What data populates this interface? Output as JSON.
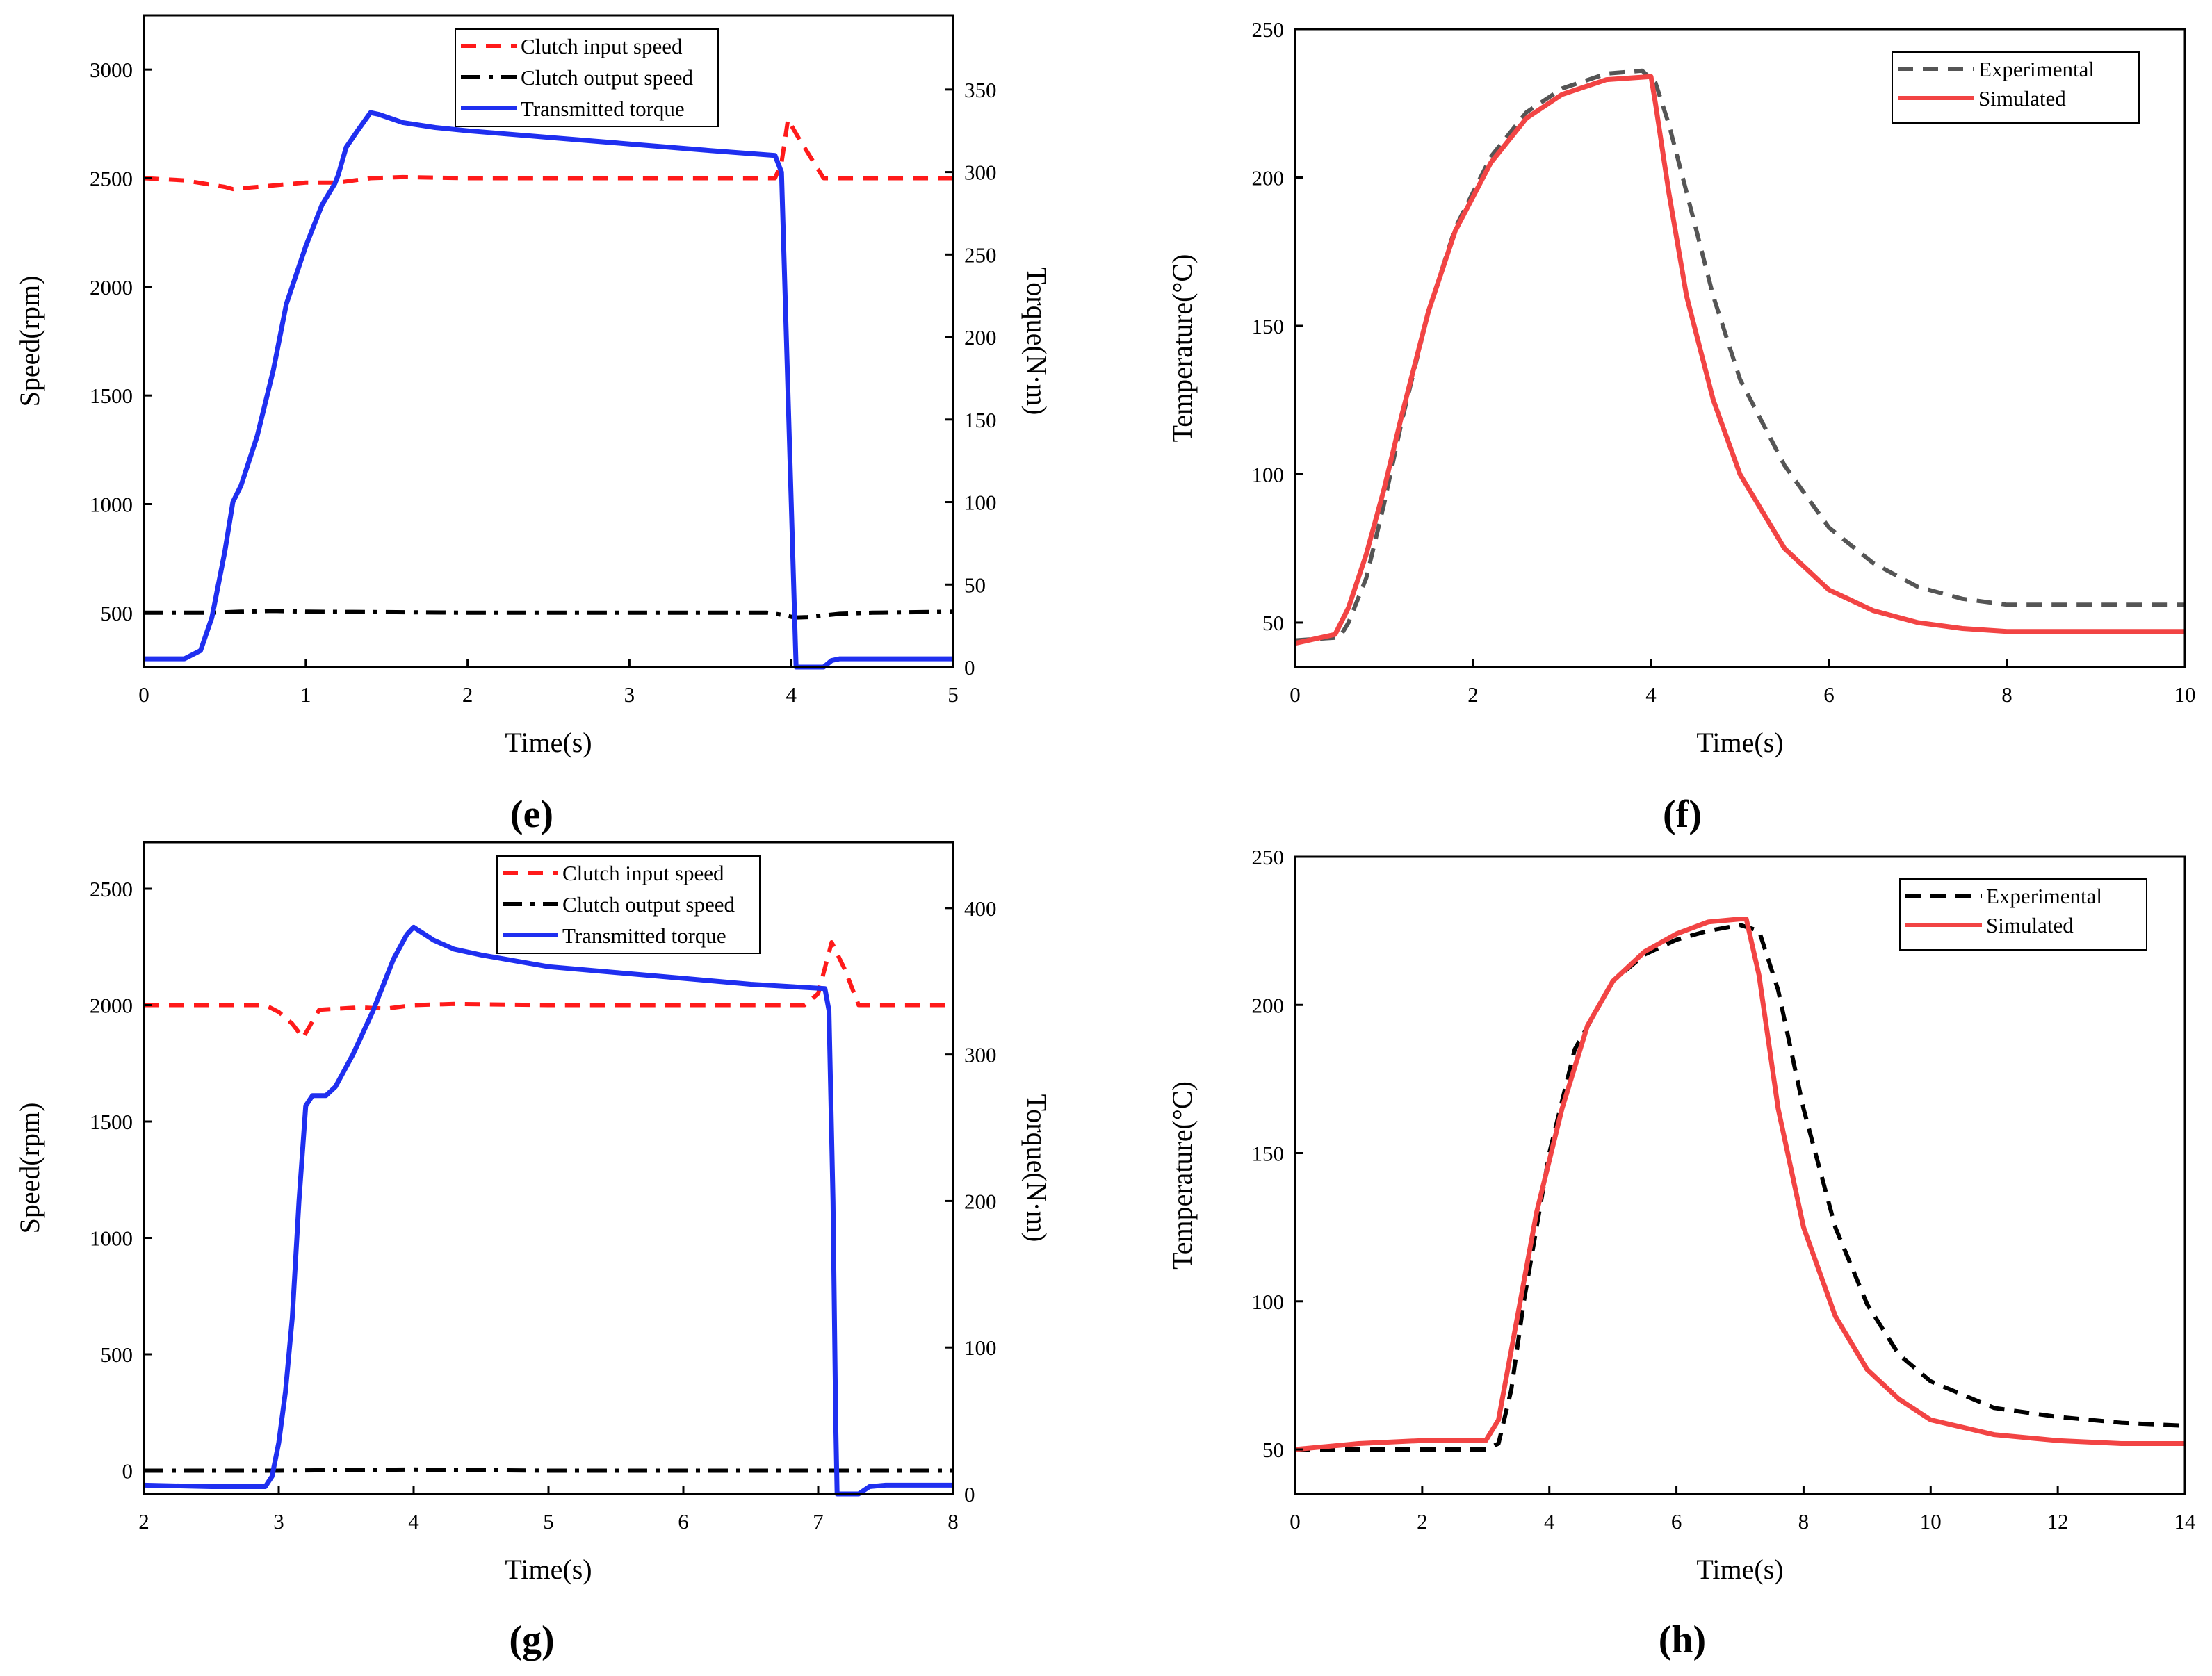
{
  "colors": {
    "input": "#ff1a1a",
    "output": "#000000",
    "torque": "#1f2ff0",
    "experimental_f": "#555555",
    "experimental_h": "#000000",
    "simulated": "#f24444"
  },
  "chart_data": [
    {
      "type": "line",
      "panel_label": "(e)",
      "xlabel": "Time(s)",
      "ylabel": "Speed(rpm)",
      "y2label": "Torque(N·m)",
      "xlim": [
        0,
        5
      ],
      "ylim": [
        250,
        3250
      ],
      "y2lim": [
        0,
        395
      ],
      "xticks": [
        "0",
        "1",
        "2",
        "3",
        "4",
        "5"
      ],
      "yticks": [
        "500",
        "1000",
        "1500",
        "2000",
        "2500",
        "3000"
      ],
      "y2ticks": [
        "0",
        "50",
        "100",
        "150",
        "200",
        "250",
        "300",
        "350"
      ],
      "legend": [
        "Clutch input speed",
        "Clutch output speed",
        "Transmitted torque"
      ],
      "series": [
        {
          "name": "Clutch input speed",
          "axis": "left",
          "style": "dash",
          "color_key": "input",
          "points": [
            [
              0,
              2500
            ],
            [
              0.25,
              2490
            ],
            [
              0.5,
              2460
            ],
            [
              0.55,
              2450
            ],
            [
              0.7,
              2460
            ],
            [
              1.0,
              2480
            ],
            [
              1.2,
              2480
            ],
            [
              1.4,
              2500
            ],
            [
              1.6,
              2505
            ],
            [
              2.0,
              2500
            ],
            [
              2.5,
              2500
            ],
            [
              3.0,
              2500
            ],
            [
              3.9,
              2500
            ],
            [
              3.94,
              2570
            ],
            [
              3.98,
              2770
            ],
            [
              4.05,
              2680
            ],
            [
              4.2,
              2500
            ],
            [
              4.5,
              2500
            ],
            [
              5.0,
              2500
            ]
          ]
        },
        {
          "name": "Clutch output speed",
          "axis": "left",
          "style": "dashdot",
          "color_key": "output",
          "points": [
            [
              0,
              500
            ],
            [
              0.4,
              500
            ],
            [
              0.6,
              505
            ],
            [
              0.8,
              508
            ],
            [
              1.0,
              505
            ],
            [
              1.5,
              503
            ],
            [
              2.0,
              500
            ],
            [
              2.5,
              500
            ],
            [
              3.0,
              500
            ],
            [
              3.7,
              500
            ],
            [
              3.85,
              500
            ],
            [
              3.95,
              490
            ],
            [
              4.02,
              478
            ],
            [
              4.1,
              480
            ],
            [
              4.3,
              495
            ],
            [
              4.5,
              500
            ],
            [
              5.0,
              505
            ]
          ]
        },
        {
          "name": "Transmitted torque",
          "axis": "right",
          "style": "solid",
          "color_key": "torque",
          "points": [
            [
              0,
              5
            ],
            [
              0.25,
              5
            ],
            [
              0.35,
              10
            ],
            [
              0.42,
              30
            ],
            [
              0.5,
              70
            ],
            [
              0.55,
              100
            ],
            [
              0.6,
              110
            ],
            [
              0.7,
              140
            ],
            [
              0.8,
              180
            ],
            [
              0.88,
              220
            ],
            [
              1.0,
              255
            ],
            [
              1.1,
              280
            ],
            [
              1.18,
              293
            ],
            [
              1.2,
              298
            ],
            [
              1.25,
              315
            ],
            [
              1.32,
              325
            ],
            [
              1.4,
              336
            ],
            [
              1.45,
              335
            ],
            [
              1.6,
              330
            ],
            [
              1.8,
              327
            ],
            [
              2.0,
              325
            ],
            [
              2.5,
              321
            ],
            [
              3.0,
              317
            ],
            [
              3.5,
              313
            ],
            [
              3.9,
              310
            ],
            [
              3.94,
              300
            ],
            [
              3.97,
              200
            ],
            [
              4.0,
              100
            ],
            [
              4.03,
              0
            ],
            [
              4.2,
              0
            ],
            [
              4.25,
              4
            ],
            [
              4.3,
              5
            ],
            [
              5.0,
              5
            ]
          ]
        }
      ]
    },
    {
      "type": "line",
      "panel_label": "(f)",
      "xlabel": "Time(s)",
      "ylabel": "Temperature(°C)",
      "xlim": [
        0,
        10
      ],
      "ylim": [
        35,
        250
      ],
      "xticks": [
        "0",
        "2",
        "4",
        "6",
        "8",
        "10"
      ],
      "yticks": [
        "50",
        "100",
        "150",
        "200",
        "250"
      ],
      "legend": [
        "Experimental",
        "Simulated"
      ],
      "series": [
        {
          "name": "Experimental",
          "style": "dash",
          "color_key": "experimental_f",
          "points": [
            [
              0,
              44
            ],
            [
              0.5,
              45
            ],
            [
              0.6,
              50
            ],
            [
              0.8,
              65
            ],
            [
              1.0,
              90
            ],
            [
              1.2,
              118
            ],
            [
              1.5,
              155
            ],
            [
              1.8,
              183
            ],
            [
              2.2,
              207
            ],
            [
              2.6,
              222
            ],
            [
              3.0,
              230
            ],
            [
              3.5,
              235
            ],
            [
              3.9,
              236
            ],
            [
              4.05,
              232
            ],
            [
              4.2,
              218
            ],
            [
              4.4,
              195
            ],
            [
              4.7,
              160
            ],
            [
              5.0,
              132
            ],
            [
              5.5,
              103
            ],
            [
              6.0,
              82
            ],
            [
              6.5,
              70
            ],
            [
              7.0,
              62
            ],
            [
              7.5,
              58
            ],
            [
              8.0,
              56
            ],
            [
              9.0,
              56
            ],
            [
              10.0,
              56
            ]
          ]
        },
        {
          "name": "Simulated",
          "style": "solid",
          "color_key": "simulated",
          "points": [
            [
              0,
              43
            ],
            [
              0.45,
              46
            ],
            [
              0.6,
              55
            ],
            [
              0.8,
              73
            ],
            [
              1.0,
              95
            ],
            [
              1.2,
              120
            ],
            [
              1.5,
              155
            ],
            [
              1.8,
              182
            ],
            [
              2.2,
              205
            ],
            [
              2.6,
              220
            ],
            [
              3.0,
              228
            ],
            [
              3.5,
              233
            ],
            [
              4.0,
              234
            ],
            [
              4.05,
              225
            ],
            [
              4.2,
              195
            ],
            [
              4.4,
              160
            ],
            [
              4.7,
              125
            ],
            [
              5.0,
              100
            ],
            [
              5.5,
              75
            ],
            [
              6.0,
              61
            ],
            [
              6.5,
              54
            ],
            [
              7.0,
              50
            ],
            [
              7.5,
              48
            ],
            [
              8.0,
              47
            ],
            [
              9.0,
              47
            ],
            [
              10.0,
              47
            ]
          ]
        }
      ]
    },
    {
      "type": "line",
      "panel_label": "(g)",
      "xlabel": "Time(s)",
      "ylabel": "Speed(rpm)",
      "y2label": "Torque(N·m)",
      "xlim": [
        2,
        8
      ],
      "ylim": [
        -100,
        2700
      ],
      "y2lim": [
        0,
        445
      ],
      "xticks": [
        "2",
        "3",
        "4",
        "5",
        "6",
        "7",
        "8"
      ],
      "yticks": [
        "0",
        "500",
        "1000",
        "1500",
        "2000",
        "2500"
      ],
      "y2ticks": [
        "0",
        "100",
        "200",
        "300",
        "400"
      ],
      "legend": [
        "Clutch input speed",
        "Clutch output speed",
        "Transmitted torque"
      ],
      "series": [
        {
          "name": "Clutch input speed",
          "axis": "left",
          "style": "dash",
          "color_key": "input",
          "points": [
            [
              2,
              2000
            ],
            [
              2.5,
              2000
            ],
            [
              2.9,
              2000
            ],
            [
              3.0,
              1970
            ],
            [
              3.1,
              1920
            ],
            [
              3.18,
              1860
            ],
            [
              3.3,
              1980
            ],
            [
              3.6,
              1990
            ],
            [
              3.8,
              1985
            ],
            [
              4.0,
              2000
            ],
            [
              4.3,
              2005
            ],
            [
              5.0,
              2000
            ],
            [
              6.0,
              2000
            ],
            [
              6.9,
              2000
            ],
            [
              7.0,
              2050
            ],
            [
              7.1,
              2270
            ],
            [
              7.2,
              2150
            ],
            [
              7.3,
              2000
            ],
            [
              8.0,
              2000
            ]
          ]
        },
        {
          "name": "Clutch output speed",
          "axis": "left",
          "style": "dashdot",
          "color_key": "output",
          "points": [
            [
              2,
              0
            ],
            [
              3,
              0
            ],
            [
              4,
              5
            ],
            [
              5,
              0
            ],
            [
              6,
              0
            ],
            [
              7,
              0
            ],
            [
              8,
              0
            ]
          ]
        },
        {
          "name": "Transmitted torque",
          "axis": "right",
          "style": "solid",
          "color_key": "torque",
          "points": [
            [
              2,
              6
            ],
            [
              2.5,
              5
            ],
            [
              2.9,
              5
            ],
            [
              2.95,
              12
            ],
            [
              3.0,
              35
            ],
            [
              3.05,
              70
            ],
            [
              3.1,
              120
            ],
            [
              3.15,
              200
            ],
            [
              3.2,
              265
            ],
            [
              3.25,
              272
            ],
            [
              3.35,
              272
            ],
            [
              3.42,
              278
            ],
            [
              3.55,
              300
            ],
            [
              3.7,
              330
            ],
            [
              3.85,
              365
            ],
            [
              3.95,
              382
            ],
            [
              4.0,
              387
            ],
            [
              4.15,
              378
            ],
            [
              4.3,
              372
            ],
            [
              4.5,
              368
            ],
            [
              5.0,
              360
            ],
            [
              5.5,
              356
            ],
            [
              6.0,
              352
            ],
            [
              6.5,
              348
            ],
            [
              7.05,
              345
            ],
            [
              7.08,
              330
            ],
            [
              7.11,
              200
            ],
            [
              7.13,
              50
            ],
            [
              7.14,
              0
            ],
            [
              7.3,
              0
            ],
            [
              7.38,
              5
            ],
            [
              7.5,
              6
            ],
            [
              8.0,
              6
            ]
          ]
        }
      ]
    },
    {
      "type": "line",
      "panel_label": "(h)",
      "xlabel": "Time(s)",
      "ylabel": "Temperature(°C)",
      "xlim": [
        0,
        14
      ],
      "ylim": [
        35,
        250
      ],
      "xticks": [
        "0",
        "2",
        "4",
        "6",
        "8",
        "10",
        "12",
        "14"
      ],
      "yticks": [
        "50",
        "100",
        "150",
        "200",
        "250"
      ],
      "legend": [
        "Experimental",
        "Simulated"
      ],
      "series": [
        {
          "name": "Experimental",
          "style": "dash",
          "color_key": "experimental_h",
          "points": [
            [
              0,
              50
            ],
            [
              1,
              50
            ],
            [
              2,
              50
            ],
            [
              3,
              50
            ],
            [
              3.2,
              52
            ],
            [
              3.4,
              70
            ],
            [
              3.6,
              100
            ],
            [
              4.0,
              150
            ],
            [
              4.4,
              185
            ],
            [
              5.0,
              208
            ],
            [
              5.5,
              217
            ],
            [
              6.0,
              222
            ],
            [
              6.5,
              225
            ],
            [
              7.0,
              227
            ],
            [
              7.3,
              225
            ],
            [
              7.6,
              205
            ],
            [
              8.0,
              165
            ],
            [
              8.5,
              125
            ],
            [
              9.0,
              99
            ],
            [
              9.5,
              82
            ],
            [
              10.0,
              73
            ],
            [
              11.0,
              64
            ],
            [
              12.0,
              61
            ],
            [
              13.0,
              59
            ],
            [
              14.0,
              58
            ]
          ]
        },
        {
          "name": "Simulated",
          "style": "solid",
          "color_key": "simulated",
          "points": [
            [
              0,
              50
            ],
            [
              1,
              52
            ],
            [
              2,
              53
            ],
            [
              3.0,
              53
            ],
            [
              3.2,
              60
            ],
            [
              3.5,
              95
            ],
            [
              3.8,
              130
            ],
            [
              4.2,
              165
            ],
            [
              4.6,
              193
            ],
            [
              5.0,
              208
            ],
            [
              5.5,
              218
            ],
            [
              6.0,
              224
            ],
            [
              6.5,
              228
            ],
            [
              7.0,
              229
            ],
            [
              7.1,
              229
            ],
            [
              7.3,
              210
            ],
            [
              7.6,
              165
            ],
            [
              8.0,
              125
            ],
            [
              8.5,
              95
            ],
            [
              9.0,
              77
            ],
            [
              9.5,
              67
            ],
            [
              10.0,
              60
            ],
            [
              11.0,
              55
            ],
            [
              12.0,
              53
            ],
            [
              13.0,
              52
            ],
            [
              14.0,
              52
            ]
          ]
        }
      ]
    }
  ]
}
